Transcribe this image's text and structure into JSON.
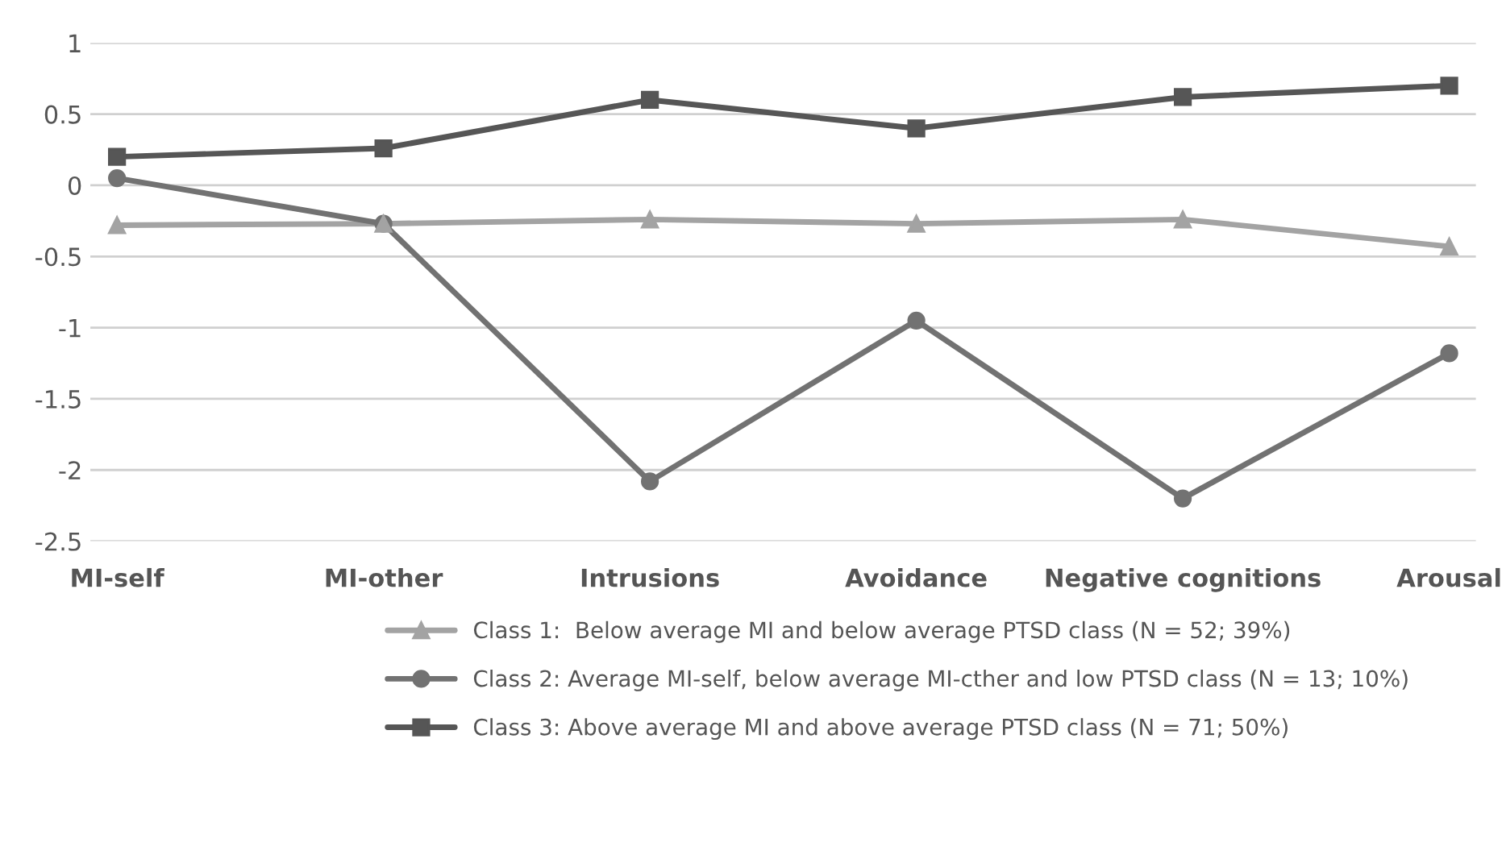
{
  "chart_data": {
    "type": "line",
    "categories": [
      "MI-self",
      "MI-other",
      "Intrusions",
      "Avoidance",
      "Negative cognitions",
      "Arousal"
    ],
    "series": [
      {
        "name": "Class 1:  Below average MI and below average PTSD class (N = 52; 39%)",
        "color": "#a3a3a3",
        "marker": "triangle",
        "values": [
          -0.28,
          -0.27,
          -0.24,
          -0.27,
          -0.24,
          -0.43
        ]
      },
      {
        "name": "Class 2: Average MI-self, below average MI-cther and low PTSD class (N = 13; 10%)",
        "color": "#727272",
        "marker": "circle",
        "values": [
          0.05,
          -0.27,
          -2.08,
          -0.95,
          -2.2,
          -1.18
        ]
      },
      {
        "name": "Class 3: Above average MI and above average PTSD class (N = 71; 50%)",
        "color": "#565656",
        "marker": "square",
        "values": [
          0.2,
          0.26,
          0.6,
          0.4,
          0.62,
          0.7
        ]
      }
    ],
    "ylim": [
      -2.5,
      1
    ],
    "yticks": [
      -2.5,
      -2,
      -1.5,
      -1,
      -0.5,
      0,
      0.5,
      1
    ],
    "grid": "y",
    "legend": "bottom",
    "line_style": "solid"
  }
}
